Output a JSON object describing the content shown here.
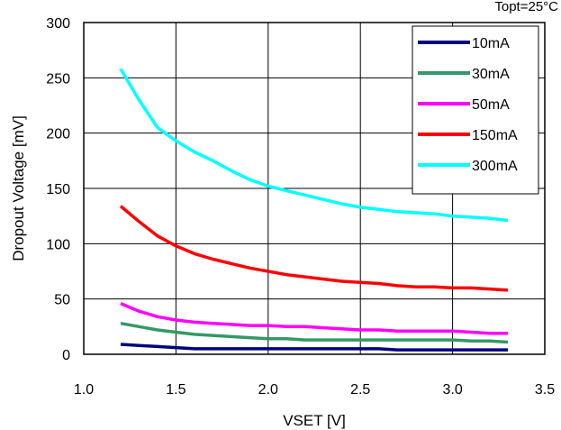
{
  "chart_data": {
    "type": "line",
    "annotation": "Topt=25°C",
    "xlabel": "VSET [V]",
    "ylabel": "Dropout Voltage [mV]",
    "xlim": [
      1.0,
      3.5
    ],
    "ylim": [
      0,
      300
    ],
    "x_ticks": [
      "1.0",
      "1.5",
      "2.0",
      "2.5",
      "3.0",
      "3.5"
    ],
    "y_ticks": [
      "0",
      "50",
      "100",
      "150",
      "200",
      "250",
      "300"
    ],
    "grid": true,
    "legend_position": "top-right",
    "x": [
      1.2,
      1.3,
      1.4,
      1.5,
      1.6,
      1.7,
      1.8,
      1.9,
      2.0,
      2.1,
      2.2,
      2.3,
      2.4,
      2.5,
      2.6,
      2.7,
      2.8,
      2.9,
      3.0,
      3.1,
      3.2,
      3.3
    ],
    "series": [
      {
        "name": "10mA",
        "color": "#000080",
        "values": [
          9,
          8,
          7,
          6,
          5,
          5,
          5,
          5,
          5,
          5,
          5,
          5,
          5,
          5,
          5,
          4,
          4,
          4,
          4,
          4,
          4,
          4
        ]
      },
      {
        "name": "30mA",
        "color": "#339966",
        "values": [
          28,
          25,
          22,
          20,
          18,
          17,
          16,
          15,
          14,
          14,
          13,
          13,
          13,
          13,
          13,
          13,
          13,
          13,
          13,
          12,
          12,
          11
        ]
      },
      {
        "name": "50mA",
        "color": "#ff00ff",
        "values": [
          46,
          39,
          34,
          31,
          29,
          28,
          27,
          26,
          26,
          25,
          25,
          24,
          23,
          22,
          22,
          21,
          21,
          21,
          21,
          20,
          19,
          19
        ]
      },
      {
        "name": "150mA",
        "color": "#ff0000",
        "values": [
          134,
          120,
          107,
          98,
          91,
          86,
          82,
          78,
          75,
          72,
          70,
          68,
          66,
          65,
          64,
          62,
          61,
          61,
          60,
          60,
          59,
          58
        ]
      },
      {
        "name": "300mA",
        "color": "#00ffff",
        "values": [
          258,
          230,
          205,
          193,
          183,
          175,
          166,
          158,
          152,
          148,
          144,
          140,
          136,
          133,
          131,
          129,
          128,
          127,
          125,
          124,
          123,
          121
        ]
      }
    ]
  }
}
